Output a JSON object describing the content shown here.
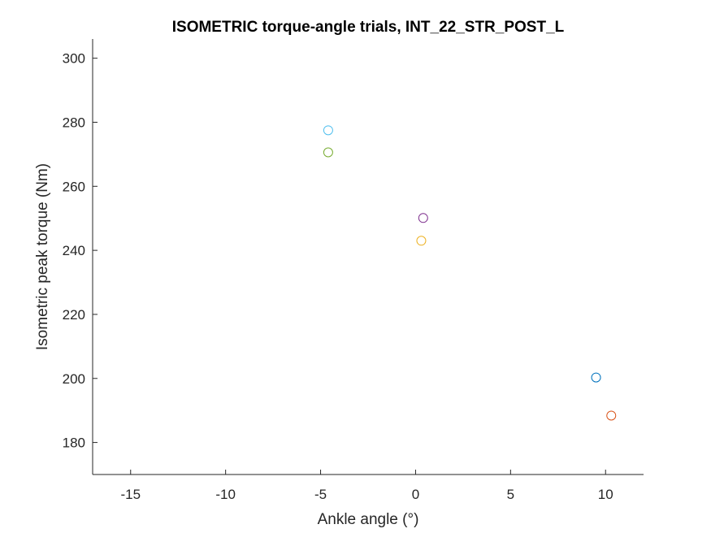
{
  "chart_data": {
    "type": "scatter",
    "title": "ISOMETRIC torque-angle trials, INT_22_STR_POST_L",
    "xlabel": "Ankle angle (°)",
    "ylabel": "Isometric peak torque (Nm)",
    "xlim": [
      -17,
      12
    ],
    "ylim": [
      170,
      306
    ],
    "xticks": [
      -15,
      -10,
      -5,
      0,
      5,
      10
    ],
    "yticks": [
      180,
      200,
      220,
      240,
      260,
      280,
      300
    ],
    "grid": false,
    "marker": "open-circle",
    "points": [
      {
        "x": -4.6,
        "y": 277.5,
        "color": "#4DBEEE"
      },
      {
        "x": -4.6,
        "y": 270.6,
        "color": "#77AC30"
      },
      {
        "x": 0.4,
        "y": 250.1,
        "color": "#7E2F8E"
      },
      {
        "x": 0.3,
        "y": 243.0,
        "color": "#EDB120"
      },
      {
        "x": 9.5,
        "y": 200.3,
        "color": "#0072BD"
      },
      {
        "x": 10.3,
        "y": 188.4,
        "color": "#D95319"
      }
    ]
  }
}
